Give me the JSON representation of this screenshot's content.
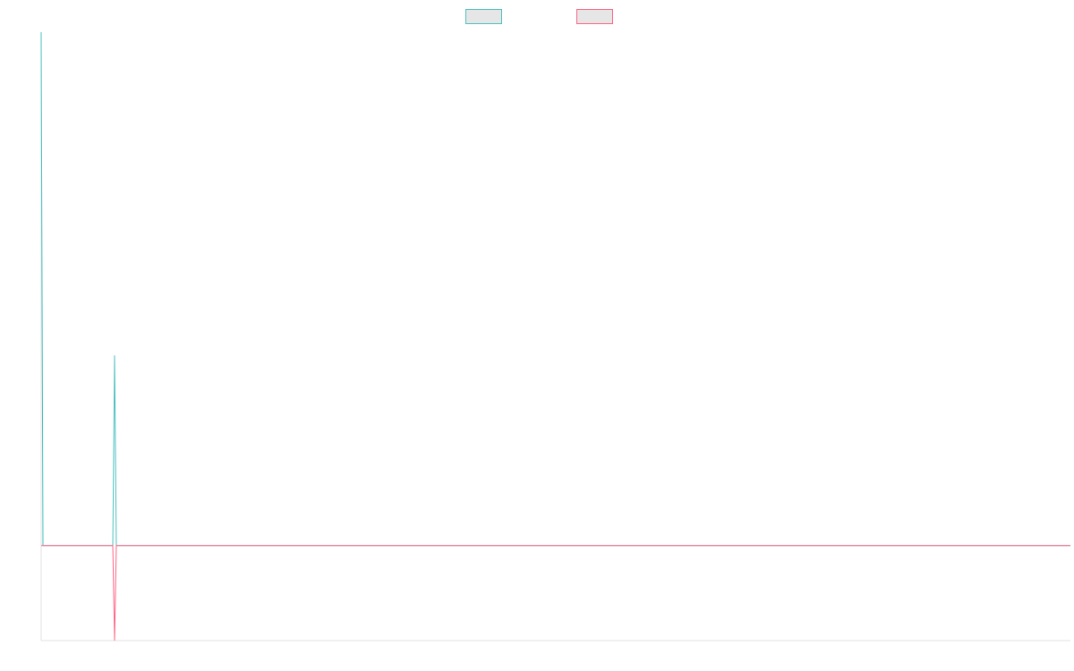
{
  "chart_data": {
    "type": "line",
    "title": "",
    "xlabel": "",
    "ylabel": "",
    "x": [
      0,
      1,
      2,
      3,
      4,
      5,
      6,
      7,
      8,
      9,
      10,
      11,
      12,
      13,
      14,
      15,
      16,
      17,
      18,
      19,
      20,
      21,
      22,
      23,
      24,
      25,
      26,
      27,
      28,
      29,
      30,
      31,
      32,
      33,
      34,
      35,
      36,
      37,
      38,
      39,
      40,
      41,
      42,
      43,
      44,
      45,
      46,
      47,
      48,
      49,
      50,
      51,
      52,
      53,
      54,
      55,
      56,
      57,
      58,
      59,
      60,
      61,
      62,
      63,
      64,
      65,
      66,
      67,
      68,
      69,
      70,
      71,
      72,
      73,
      74,
      75,
      76,
      77,
      78,
      79,
      80,
      81,
      82,
      83,
      84,
      85,
      86,
      87,
      88,
      89,
      90,
      91,
      92,
      93,
      94,
      95,
      96,
      97,
      98,
      99,
      100,
      101,
      102,
      103,
      104,
      105,
      106,
      107,
      108,
      109,
      110,
      111,
      112,
      113,
      114,
      115,
      116,
      117,
      118,
      119,
      120,
      121,
      122,
      123,
      124,
      125,
      126,
      127,
      128,
      129,
      130,
      131,
      132,
      133,
      134,
      135,
      136,
      137,
      138,
      139,
      140,
      141,
      142,
      143,
      144,
      145,
      146,
      147,
      148,
      149,
      150,
      151,
      152,
      153,
      154,
      155,
      156,
      157,
      158,
      159,
      160,
      161,
      162,
      163,
      164,
      165,
      166,
      167,
      168,
      169,
      170,
      171,
      172,
      173,
      174,
      175,
      176,
      177,
      178,
      179,
      180,
      181,
      182,
      183,
      184,
      185,
      186,
      187,
      188,
      189,
      190,
      191,
      192,
      193,
      194,
      195,
      196,
      197,
      198,
      199,
      200,
      201,
      202,
      203,
      204,
      205,
      206,
      207,
      208,
      209,
      210,
      211,
      212,
      213,
      214,
      215,
      216,
      217,
      218,
      219,
      220,
      221,
      222,
      223,
      224,
      225,
      226,
      227,
      228,
      229,
      230,
      231,
      232,
      233,
      234,
      235,
      236,
      237,
      238,
      239,
      240,
      241,
      242,
      243,
      244,
      245,
      246,
      247,
      248,
      249,
      250,
      251,
      252,
      253,
      254,
      255,
      256,
      257,
      258,
      259,
      260,
      261,
      262,
      263,
      264,
      265,
      266,
      267,
      268,
      269,
      270,
      271,
      272,
      273,
      274,
      275,
      276,
      277,
      278,
      279,
      280,
      281,
      282,
      283,
      284,
      285,
      286,
      287,
      288,
      289,
      290,
      291,
      292,
      293,
      294,
      295,
      296,
      297,
      298,
      299,
      300,
      301,
      302,
      303,
      304,
      305,
      306,
      307,
      308,
      309,
      310,
      311,
      312,
      313,
      314,
      315,
      316,
      317,
      318,
      319,
      320,
      321,
      322,
      323,
      324,
      325,
      326,
      327,
      328,
      329,
      330,
      331,
      332,
      333,
      334,
      335,
      336,
      337,
      338,
      339,
      340,
      341,
      342,
      343,
      344,
      345,
      346,
      347,
      348,
      349,
      350,
      351,
      352,
      353,
      354,
      355,
      356,
      357,
      358,
      359,
      360,
      361,
      362,
      363,
      364,
      365,
      366,
      367,
      368,
      369,
      370,
      371,
      372,
      373,
      374,
      375,
      376,
      377,
      378,
      379,
      380,
      381,
      382,
      383,
      384,
      385,
      386,
      387,
      388,
      389,
      390,
      391,
      392,
      393,
      394,
      395,
      396,
      397,
      398,
      399,
      400,
      401,
      402,
      403,
      404,
      405,
      406,
      407,
      408,
      409,
      410,
      411,
      412,
      413,
      414,
      415,
      416,
      417,
      418,
      419,
      420,
      421,
      422,
      423,
      424,
      425,
      426,
      427,
      428,
      429,
      430,
      431,
      432,
      433,
      434,
      435,
      436,
      437,
      438,
      439,
      440,
      441,
      442,
      443,
      444,
      445,
      446,
      447,
      448,
      449,
      450,
      451,
      452,
      453,
      454,
      455,
      456,
      457,
      458,
      459,
      460,
      461,
      462,
      463,
      464,
      465,
      466,
      467,
      468,
      469,
      470,
      471,
      472,
      473,
      474,
      475,
      476,
      477,
      478,
      479,
      480,
      481,
      482,
      483,
      484,
      485,
      486,
      487,
      488,
      489,
      490,
      491,
      492,
      493,
      494,
      495,
      496,
      497,
      498,
      499,
      500,
      501,
      502,
      503,
      504,
      505,
      506,
      507,
      508,
      509,
      510,
      511,
      512,
      513,
      514,
      515,
      516,
      517,
      518,
      519,
      520,
      521,
      522,
      523,
      524,
      525,
      526,
      527,
      528,
      529,
      530,
      531,
      532,
      533,
      534,
      535,
      536,
      537,
      538,
      539,
      540,
      541,
      542,
      543,
      544,
      545,
      546,
      547,
      548,
      549,
      550,
      551,
      552,
      553,
      554,
      555,
      556,
      557,
      558,
      559,
      560,
      561,
      562,
      563,
      564,
      565,
      566,
      567,
      568,
      569,
      570,
      571,
      572,
      573,
      574,
      575
    ],
    "ylim": [
      -1,
      5.4
    ],
    "xlim": [
      0,
      575
    ],
    "grid": false,
    "legend_position": "top-center",
    "series": [
      {
        "name": "",
        "color": "#4bc0c0",
        "fill": "#e6e6e6",
        "points": [
          [
            0,
            5.4
          ],
          [
            1,
            0
          ],
          [
            40,
            0
          ],
          [
            41,
            2
          ],
          [
            42,
            0
          ],
          [
            575,
            0
          ]
        ]
      },
      {
        "name": "",
        "color": "#ff6384",
        "fill": "#e6e6e6",
        "points": [
          [
            0,
            0
          ],
          [
            40,
            0
          ],
          [
            41,
            -1
          ],
          [
            42,
            0
          ],
          [
            575,
            0
          ]
        ]
      }
    ]
  }
}
